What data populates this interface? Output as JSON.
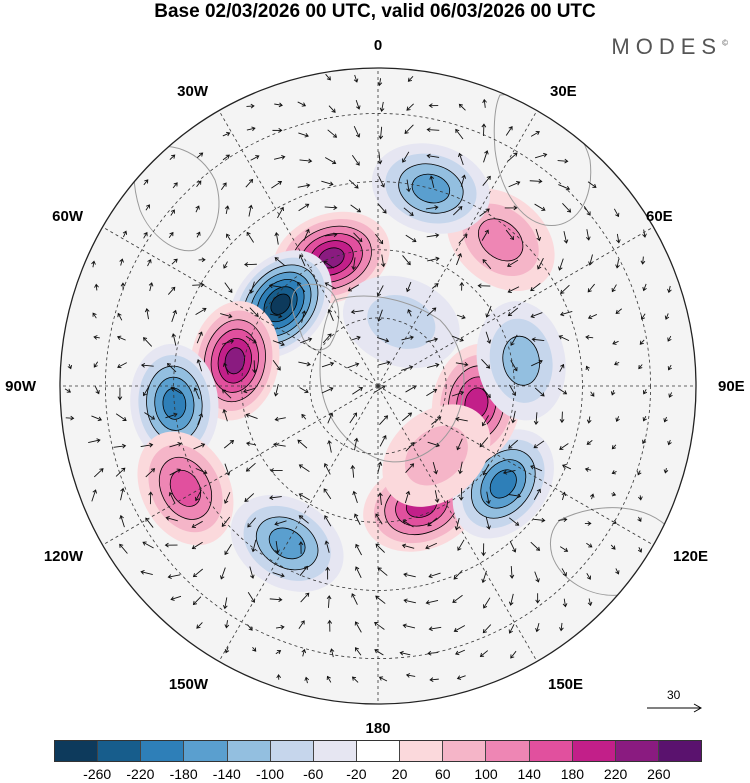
{
  "title": "Base 02/03/2026 00 UTC, valid 06/03/2026 00 UTC",
  "brand": "MODES",
  "brand_mark": "©",
  "longitude_labels": {
    "lon_0": "0",
    "lon_30e": "30E",
    "lon_60e": "60E",
    "lon_90e": "90E",
    "lon_120e": "120E",
    "lon_150e": "150E",
    "lon_180": "180",
    "lon_150w": "150W",
    "lon_120w": "120W",
    "lon_90w": "90W",
    "lon_60w": "60W",
    "lon_30w": "30W"
  },
  "reference_vector": {
    "label": "30"
  },
  "colorbar": {
    "colors": [
      "#0d3a5c",
      "#175d8c",
      "#2e7fb8",
      "#5a9fcf",
      "#93bfe0",
      "#c6d6ec",
      "#e6e6f2",
      "#ffffff",
      "#fbd9dc",
      "#f5b5c8",
      "#ee86b4",
      "#e1509e",
      "#c21f89",
      "#8a1b80",
      "#5a126e"
    ],
    "ticks": [
      "-260",
      "-220",
      "-180",
      "-140",
      "-100",
      "-60",
      "-20",
      "20",
      "60",
      "100",
      "140",
      "180",
      "220",
      "260"
    ]
  },
  "anomaly_centers": [
    {
      "lat": 60,
      "lon": -20,
      "value": 240
    },
    {
      "lat": 62,
      "lon": -50,
      "value": -260
    },
    {
      "lat": 58,
      "lon": -80,
      "value": 250
    },
    {
      "lat": 45,
      "lon": -95,
      "value": -200
    },
    {
      "lat": 42,
      "lon": -118,
      "value": 170
    },
    {
      "lat": 50,
      "lon": -150,
      "value": -160
    },
    {
      "lat": 62,
      "lon": 160,
      "value": 210
    },
    {
      "lat": 55,
      "lon": 128,
      "value": -190
    },
    {
      "lat": 68,
      "lon": 100,
      "value": 190
    },
    {
      "lat": 58,
      "lon": 80,
      "value": -130
    },
    {
      "lat": 48,
      "lon": 40,
      "value": 130
    },
    {
      "lat": 45,
      "lon": 15,
      "value": -170
    },
    {
      "lat": 75,
      "lon": 20,
      "value": -60
    },
    {
      "lat": 70,
      "lon": 140,
      "value": 60
    }
  ]
}
